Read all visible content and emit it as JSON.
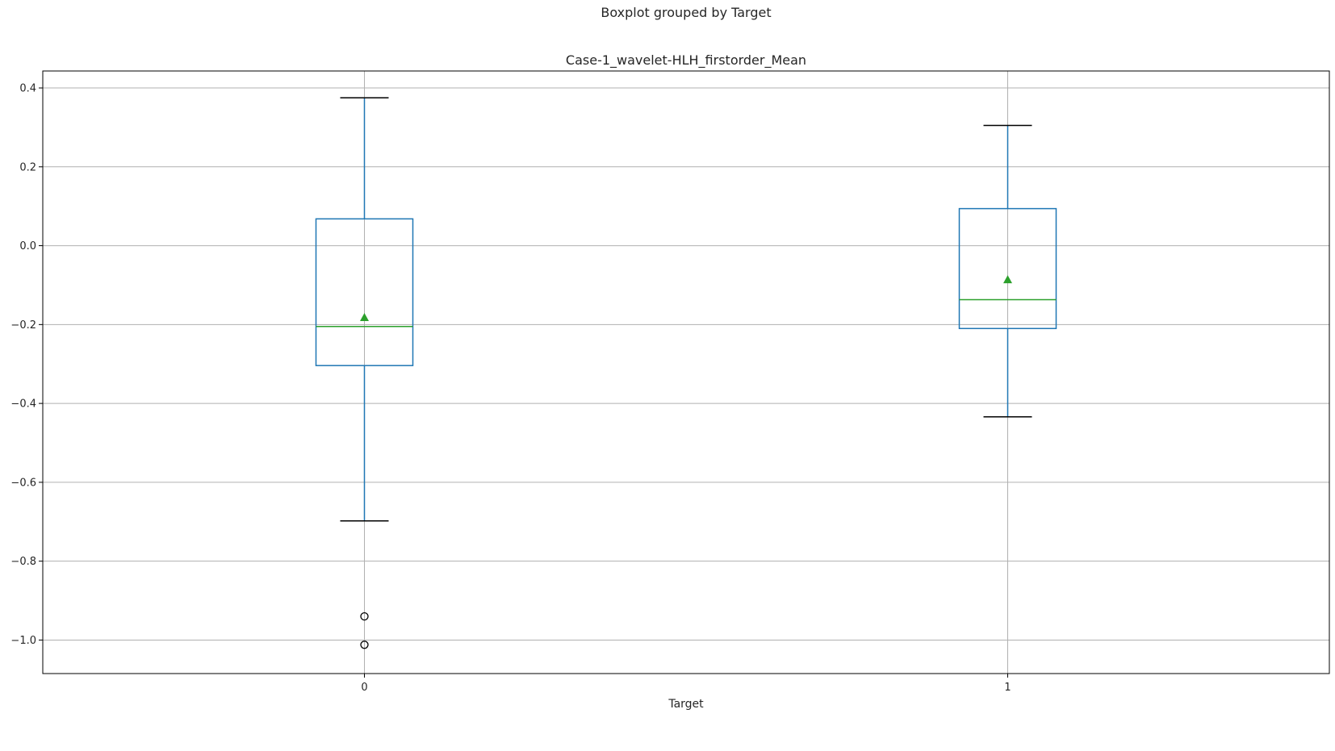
{
  "chart_data": {
    "type": "box",
    "suptitle": "Boxplot grouped by Target",
    "title": "Case-1_wavelet-HLH_firstorder_Mean",
    "xlabel": "Target",
    "ylabel": "",
    "categories": [
      "0",
      "1"
    ],
    "ylim": [
      -1.085,
      0.443
    ],
    "y_ticks": [
      0.4,
      0.2,
      0.0,
      -0.2,
      -0.4,
      -0.6,
      -0.8,
      -1.0
    ],
    "y_tick_labels": [
      "0.4",
      "0.2",
      "0.0",
      "−0.2",
      "−0.4",
      "−0.6",
      "−0.8",
      "−1.0"
    ],
    "grid": true,
    "legend": "none",
    "boxes": [
      {
        "category": "0",
        "whisker_low": -0.698,
        "q1": -0.304,
        "median": -0.205,
        "q3": 0.068,
        "whisker_high": 0.375,
        "mean": -0.183,
        "outliers": [
          -0.94,
          -1.012
        ]
      },
      {
        "category": "1",
        "whisker_low": -0.434,
        "q1": -0.21,
        "median": -0.137,
        "q3": 0.094,
        "whisker_high": 0.305,
        "mean": -0.087,
        "outliers": []
      }
    ],
    "colors": {
      "box": "#1f77b4",
      "median": "#2ca02c",
      "mean": "#2ca02c",
      "cap": "#000000",
      "grid": "#b0b0b0",
      "outlier": "#000000"
    }
  }
}
